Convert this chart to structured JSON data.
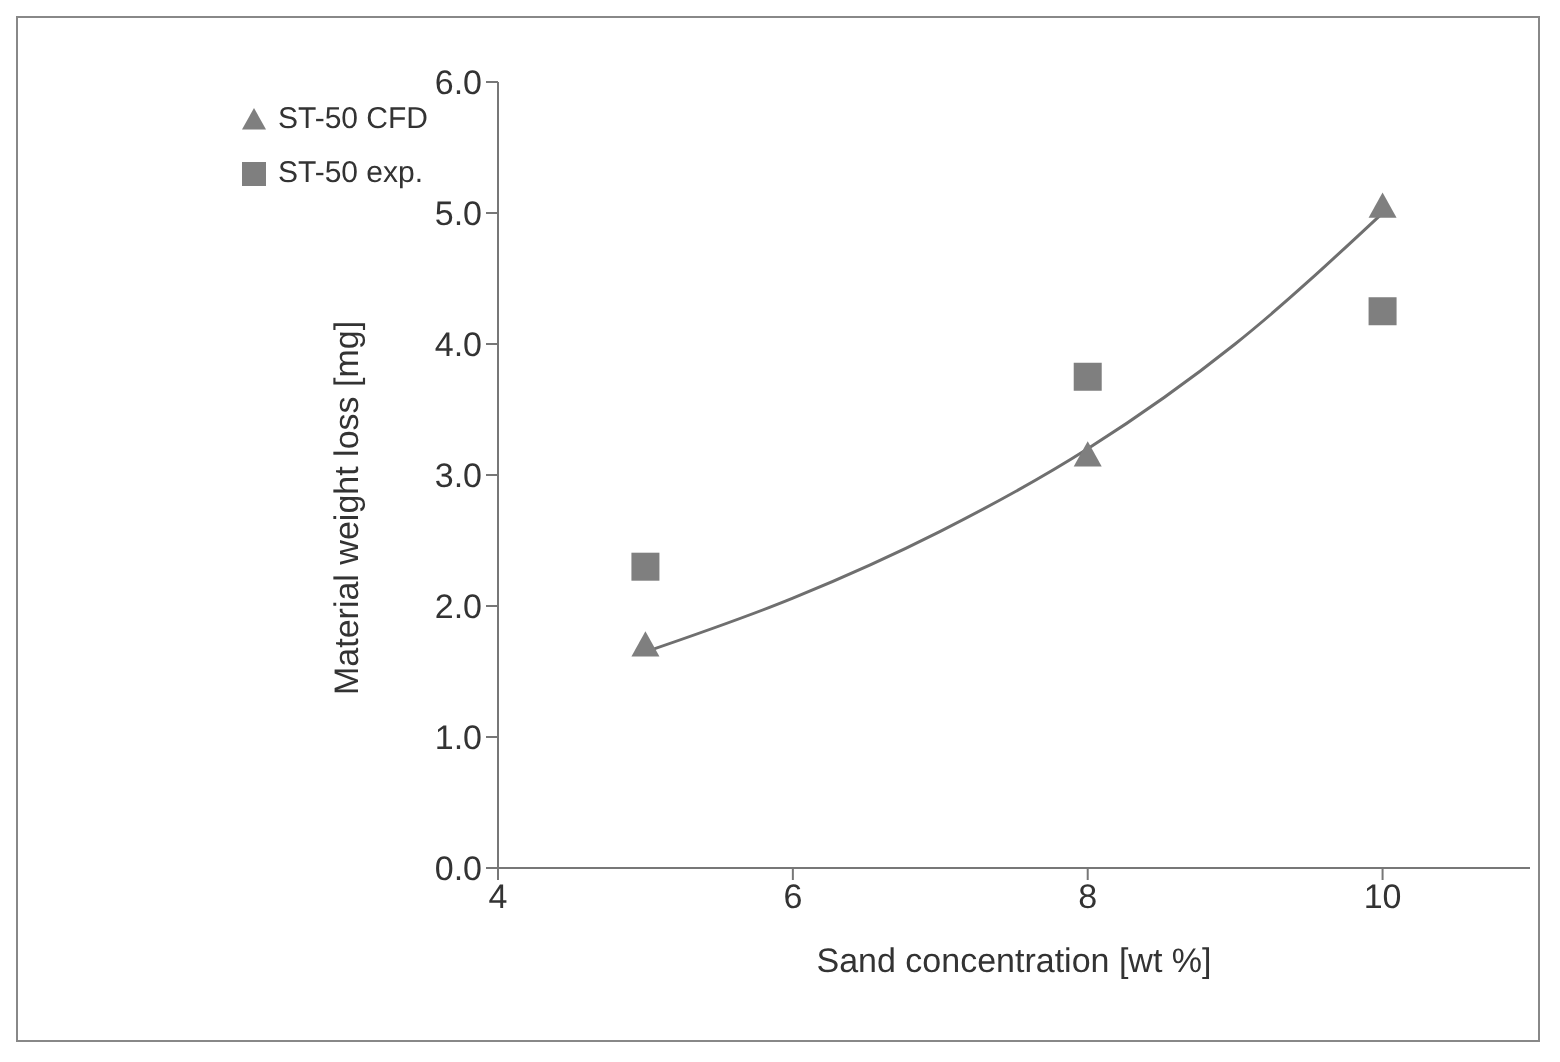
{
  "chart_data": {
    "type": "scatter",
    "xlabel": "Sand concentration [wt %]",
    "ylabel": "Material weight loss [mg]",
    "xlim": [
      4,
      11
    ],
    "xticks": [
      4,
      6,
      8,
      10
    ],
    "ylim": [
      0,
      6
    ],
    "yticks": [
      {
        "value": 0,
        "label": "0.0"
      },
      {
        "value": 1,
        "label": "1.0"
      },
      {
        "value": 2,
        "label": "2.0"
      },
      {
        "value": 3,
        "label": "3.0"
      },
      {
        "value": 4,
        "label": "4.0"
      },
      {
        "value": 5,
        "label": "5.0"
      },
      {
        "value": 6,
        "label": "6.0"
      }
    ],
    "grid": false,
    "legend": "top left",
    "series": [
      {
        "name": "ST-50 CFD",
        "color": "#7f7f7f",
        "marker": "triangle",
        "x": [
          5,
          8,
          10
        ],
        "values": [
          1.7,
          3.15,
          5.05
        ]
      },
      {
        "name": "ST-50 exp.",
        "color": "#7f7f7f",
        "marker": "square",
        "x": [
          5,
          8,
          10
        ],
        "values": [
          2.3,
          3.75,
          4.25
        ]
      },
      {
        "type": "line",
        "color": "#6f6f6f",
        "marker": "none",
        "line_style": "solid",
        "x": [
          5,
          6,
          7,
          8,
          9,
          10
        ],
        "values": [
          1.65,
          2.06,
          2.57,
          3.2,
          4.0,
          5.0
        ]
      }
    ]
  }
}
